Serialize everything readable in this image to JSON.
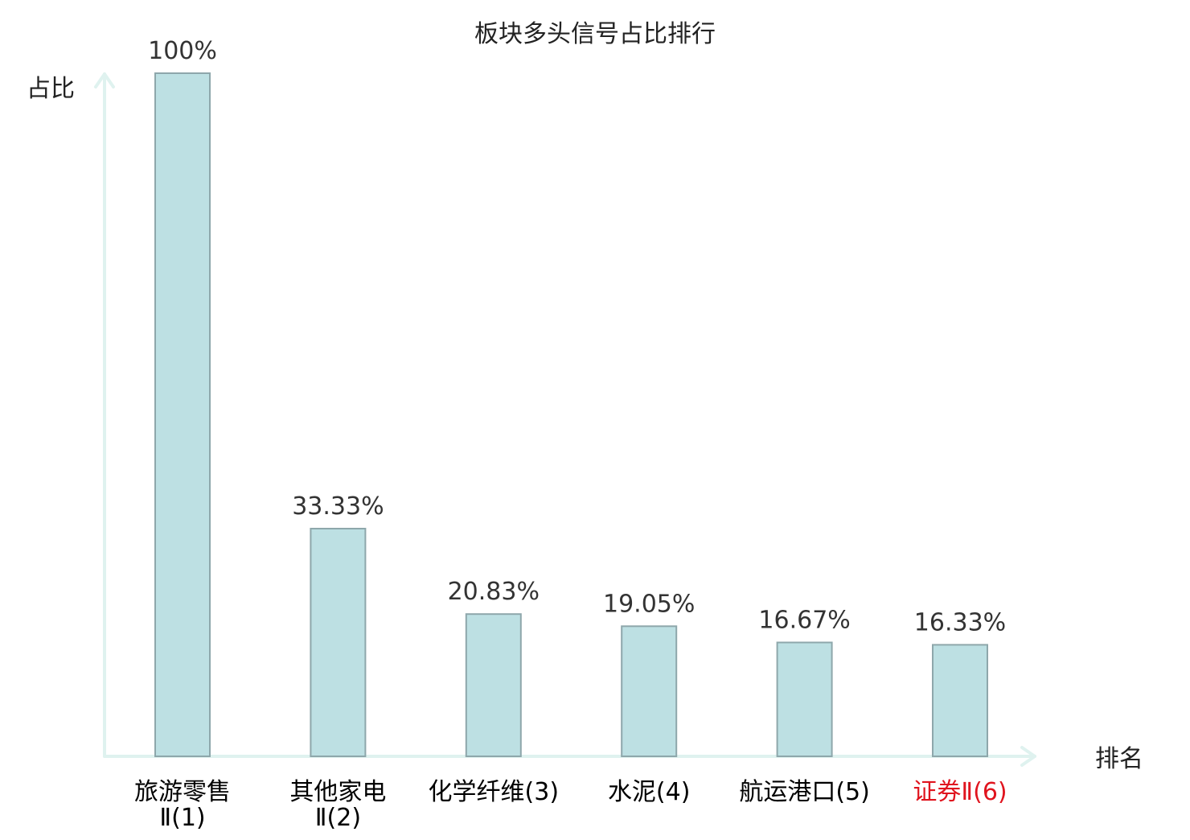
{
  "chart_data": {
    "type": "bar",
    "title": "板块多头信号占比排行",
    "ylabel": "占比",
    "xlabel": "排名",
    "ylim": [
      0,
      100
    ],
    "grid": false,
    "categories": [
      {
        "name": "旅游零售",
        "suffix": "Ⅱ(1)",
        "lines": [
          "旅游零售",
          "Ⅱ(1)"
        ],
        "highlight": false
      },
      {
        "name": "其他家电",
        "suffix": "Ⅱ(2)",
        "lines": [
          "其他家电",
          "Ⅱ(2)"
        ],
        "highlight": false
      },
      {
        "name": "化学纤维",
        "suffix": "(3)",
        "lines": [
          "化学纤维(3)"
        ],
        "highlight": false
      },
      {
        "name": "水泥",
        "suffix": "(4)",
        "lines": [
          "水泥(4)"
        ],
        "highlight": false
      },
      {
        "name": "航运港口",
        "suffix": "(5)",
        "lines": [
          "航运港口(5)"
        ],
        "highlight": false
      },
      {
        "name": "证券",
        "suffix": "Ⅱ(6)",
        "lines": [
          "证券Ⅱ(6)"
        ],
        "highlight": true
      }
    ],
    "values": [
      100,
      33.33,
      20.83,
      19.05,
      16.67,
      16.33
    ],
    "value_labels": [
      "100%",
      "33.33%",
      "20.83%",
      "19.05%",
      "16.67%",
      "16.33%"
    ]
  },
  "colors": {
    "bar_fill": "#bde0e3",
    "bar_stroke": "#8ea7ab",
    "axis": "#dff2ef",
    "text": "#333333",
    "label_text": "#000000",
    "highlight": "#e0141e"
  }
}
